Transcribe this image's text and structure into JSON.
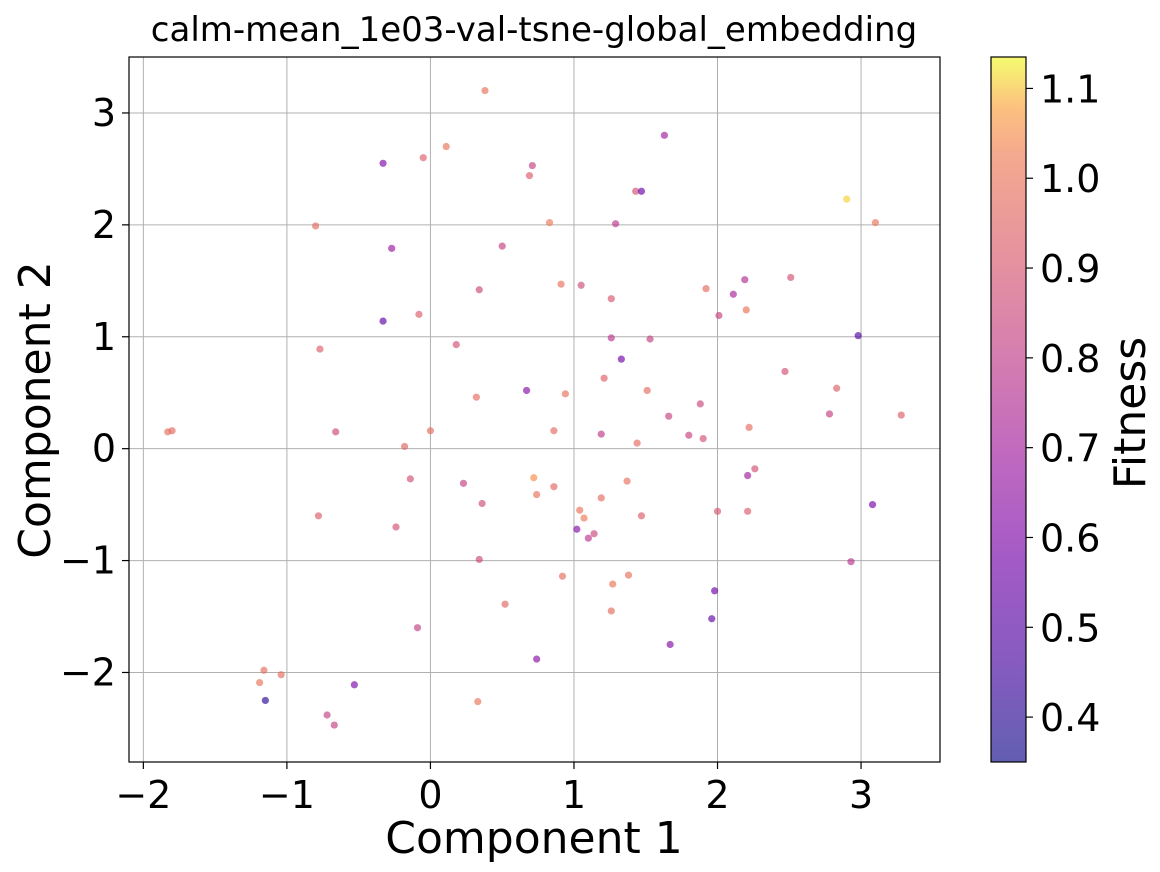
{
  "chart_data": {
    "type": "scatter",
    "title": "calm-mean_1e03-val-tsne-global_embedding",
    "xlabel": "Component 1",
    "ylabel": "Component 2",
    "xlim": [
      -2.1,
      3.55
    ],
    "ylim": [
      -2.8,
      3.5
    ],
    "xticks": [
      -2,
      -1,
      0,
      1,
      2,
      3
    ],
    "xtick_labels": [
      "−2",
      "−1",
      "0",
      "1",
      "2",
      "3"
    ],
    "yticks": [
      -2,
      -1,
      0,
      1,
      2,
      3
    ],
    "ytick_labels": [
      "−2",
      "−1",
      "0",
      "1",
      "2",
      "3"
    ],
    "grid": true,
    "colormap": "plasma",
    "colorbar": {
      "label": "Fitness",
      "range": [
        0.35,
        1.135
      ],
      "ticks": [
        0.4,
        0.5,
        0.6,
        0.7,
        0.8,
        0.9,
        1.0,
        1.1
      ],
      "tick_labels": [
        "0.4",
        "0.5",
        "0.6",
        "0.7",
        "0.8",
        "0.9",
        "1.0",
        "1.1"
      ]
    },
    "points": [
      {
        "x": 0.38,
        "y": 3.2,
        "fitness": 0.99
      },
      {
        "x": 1.63,
        "y": 2.8,
        "fitness": 0.7
      },
      {
        "x": -0.33,
        "y": 2.55,
        "fitness": 0.6
      },
      {
        "x": -0.05,
        "y": 2.6,
        "fitness": 0.93
      },
      {
        "x": 0.11,
        "y": 2.7,
        "fitness": 1.0
      },
      {
        "x": 0.71,
        "y": 2.53,
        "fitness": 0.82
      },
      {
        "x": 0.69,
        "y": 2.44,
        "fitness": 0.92
      },
      {
        "x": 1.43,
        "y": 2.3,
        "fitness": 0.88
      },
      {
        "x": 1.47,
        "y": 2.3,
        "fitness": 0.55
      },
      {
        "x": 0.83,
        "y": 2.02,
        "fitness": 1.02
      },
      {
        "x": 1.29,
        "y": 2.01,
        "fitness": 0.78
      },
      {
        "x": -0.8,
        "y": 1.99,
        "fitness": 0.97
      },
      {
        "x": 2.9,
        "y": 2.23,
        "fitness": 1.11
      },
      {
        "x": 3.1,
        "y": 2.02,
        "fitness": 1.0
      },
      {
        "x": -0.27,
        "y": 1.79,
        "fitness": 0.68
      },
      {
        "x": 0.5,
        "y": 1.81,
        "fitness": 0.82
      },
      {
        "x": 0.34,
        "y": 1.42,
        "fitness": 0.85
      },
      {
        "x": 0.91,
        "y": 1.47,
        "fitness": 0.99
      },
      {
        "x": 1.05,
        "y": 1.46,
        "fitness": 0.87
      },
      {
        "x": 1.26,
        "y": 1.34,
        "fitness": 0.9
      },
      {
        "x": 1.92,
        "y": 1.43,
        "fitness": 0.97
      },
      {
        "x": 2.19,
        "y": 1.51,
        "fitness": 0.75
      },
      {
        "x": 2.11,
        "y": 1.38,
        "fitness": 0.72
      },
      {
        "x": 2.51,
        "y": 1.53,
        "fitness": 0.88
      },
      {
        "x": -0.33,
        "y": 1.14,
        "fitness": 0.52
      },
      {
        "x": -0.08,
        "y": 1.2,
        "fitness": 0.92
      },
      {
        "x": 2.2,
        "y": 1.24,
        "fitness": 1.0
      },
      {
        "x": 2.01,
        "y": 1.19,
        "fitness": 0.83
      },
      {
        "x": -0.77,
        "y": 0.89,
        "fitness": 0.93
      },
      {
        "x": 0.18,
        "y": 0.93,
        "fitness": 0.88
      },
      {
        "x": 1.26,
        "y": 0.99,
        "fitness": 0.78
      },
      {
        "x": 1.53,
        "y": 0.98,
        "fitness": 0.82
      },
      {
        "x": 1.33,
        "y": 0.8,
        "fitness": 0.57
      },
      {
        "x": 2.98,
        "y": 1.01,
        "fitness": 0.48
      },
      {
        "x": 2.47,
        "y": 0.69,
        "fitness": 0.88
      },
      {
        "x": 1.21,
        "y": 0.63,
        "fitness": 0.93
      },
      {
        "x": 0.67,
        "y": 0.52,
        "fitness": 0.62
      },
      {
        "x": 0.94,
        "y": 0.49,
        "fitness": 0.99
      },
      {
        "x": 1.51,
        "y": 0.52,
        "fitness": 0.98
      },
      {
        "x": 0.32,
        "y": 0.46,
        "fitness": 0.98
      },
      {
        "x": 2.83,
        "y": 0.54,
        "fitness": 0.93
      },
      {
        "x": 1.88,
        "y": 0.4,
        "fitness": 0.85
      },
      {
        "x": 1.66,
        "y": 0.29,
        "fitness": 0.83
      },
      {
        "x": 2.78,
        "y": 0.31,
        "fitness": 0.82
      },
      {
        "x": 3.28,
        "y": 0.3,
        "fitness": 0.93
      },
      {
        "x": -1.8,
        "y": 0.16,
        "fitness": 0.97
      },
      {
        "x": -1.83,
        "y": 0.15,
        "fitness": 0.98
      },
      {
        "x": -0.66,
        "y": 0.15,
        "fitness": 0.85
      },
      {
        "x": 0.0,
        "y": 0.16,
        "fitness": 0.98
      },
      {
        "x": 0.86,
        "y": 0.16,
        "fitness": 0.97
      },
      {
        "x": 1.19,
        "y": 0.13,
        "fitness": 0.8
      },
      {
        "x": 1.44,
        "y": 0.05,
        "fitness": 0.97
      },
      {
        "x": 1.8,
        "y": 0.12,
        "fitness": 0.83
      },
      {
        "x": 1.9,
        "y": 0.09,
        "fitness": 0.88
      },
      {
        "x": 2.22,
        "y": 0.19,
        "fitness": 0.98
      },
      {
        "x": -0.18,
        "y": 0.02,
        "fitness": 0.95
      },
      {
        "x": -0.14,
        "y": -0.27,
        "fitness": 0.88
      },
      {
        "x": 0.23,
        "y": -0.31,
        "fitness": 0.82
      },
      {
        "x": 0.36,
        "y": -0.49,
        "fitness": 0.87
      },
      {
        "x": 0.72,
        "y": -0.26,
        "fitness": 1.05
      },
      {
        "x": 0.74,
        "y": -0.41,
        "fitness": 0.99
      },
      {
        "x": 0.86,
        "y": -0.34,
        "fitness": 0.96
      },
      {
        "x": 1.19,
        "y": -0.44,
        "fitness": 0.98
      },
      {
        "x": 1.37,
        "y": -0.29,
        "fitness": 0.99
      },
      {
        "x": 2.21,
        "y": -0.24,
        "fitness": 0.7
      },
      {
        "x": 2.26,
        "y": -0.18,
        "fitness": 0.88
      },
      {
        "x": 3.08,
        "y": -0.5,
        "fitness": 0.58
      },
      {
        "x": -0.78,
        "y": -0.6,
        "fitness": 0.92
      },
      {
        "x": -0.24,
        "y": -0.7,
        "fitness": 0.88
      },
      {
        "x": 1.04,
        "y": -0.55,
        "fitness": 1.0
      },
      {
        "x": 1.07,
        "y": -0.62,
        "fitness": 1.02
      },
      {
        "x": 1.47,
        "y": -0.6,
        "fitness": 0.92
      },
      {
        "x": 2.0,
        "y": -0.56,
        "fitness": 0.9
      },
      {
        "x": 2.21,
        "y": -0.56,
        "fitness": 0.92
      },
      {
        "x": 1.02,
        "y": -0.72,
        "fitness": 0.62
      },
      {
        "x": 1.1,
        "y": -0.8,
        "fitness": 0.78
      },
      {
        "x": 1.14,
        "y": -0.76,
        "fitness": 0.85
      },
      {
        "x": 0.34,
        "y": -0.99,
        "fitness": 0.85
      },
      {
        "x": 0.92,
        "y": -1.14,
        "fitness": 0.98
      },
      {
        "x": 1.38,
        "y": -1.13,
        "fitness": 0.99
      },
      {
        "x": 1.27,
        "y": -1.21,
        "fitness": 1.0
      },
      {
        "x": 2.93,
        "y": -1.01,
        "fitness": 0.77
      },
      {
        "x": 1.98,
        "y": -1.27,
        "fitness": 0.55
      },
      {
        "x": 0.52,
        "y": -1.39,
        "fitness": 0.96
      },
      {
        "x": 1.26,
        "y": -1.45,
        "fitness": 0.98
      },
      {
        "x": 1.96,
        "y": -1.52,
        "fitness": 0.53
      },
      {
        "x": -0.09,
        "y": -1.6,
        "fitness": 0.82
      },
      {
        "x": 1.67,
        "y": -1.75,
        "fitness": 0.62
      },
      {
        "x": 0.74,
        "y": -1.88,
        "fitness": 0.63
      },
      {
        "x": -1.16,
        "y": -1.98,
        "fitness": 0.98
      },
      {
        "x": -1.04,
        "y": -2.02,
        "fitness": 0.98
      },
      {
        "x": -1.19,
        "y": -2.09,
        "fitness": 1.0
      },
      {
        "x": -0.53,
        "y": -2.11,
        "fitness": 0.6
      },
      {
        "x": -1.15,
        "y": -2.25,
        "fitness": 0.4
      },
      {
        "x": -0.72,
        "y": -2.38,
        "fitness": 0.82
      },
      {
        "x": -0.67,
        "y": -2.47,
        "fitness": 0.82
      },
      {
        "x": 0.33,
        "y": -2.26,
        "fitness": 1.0
      }
    ]
  }
}
